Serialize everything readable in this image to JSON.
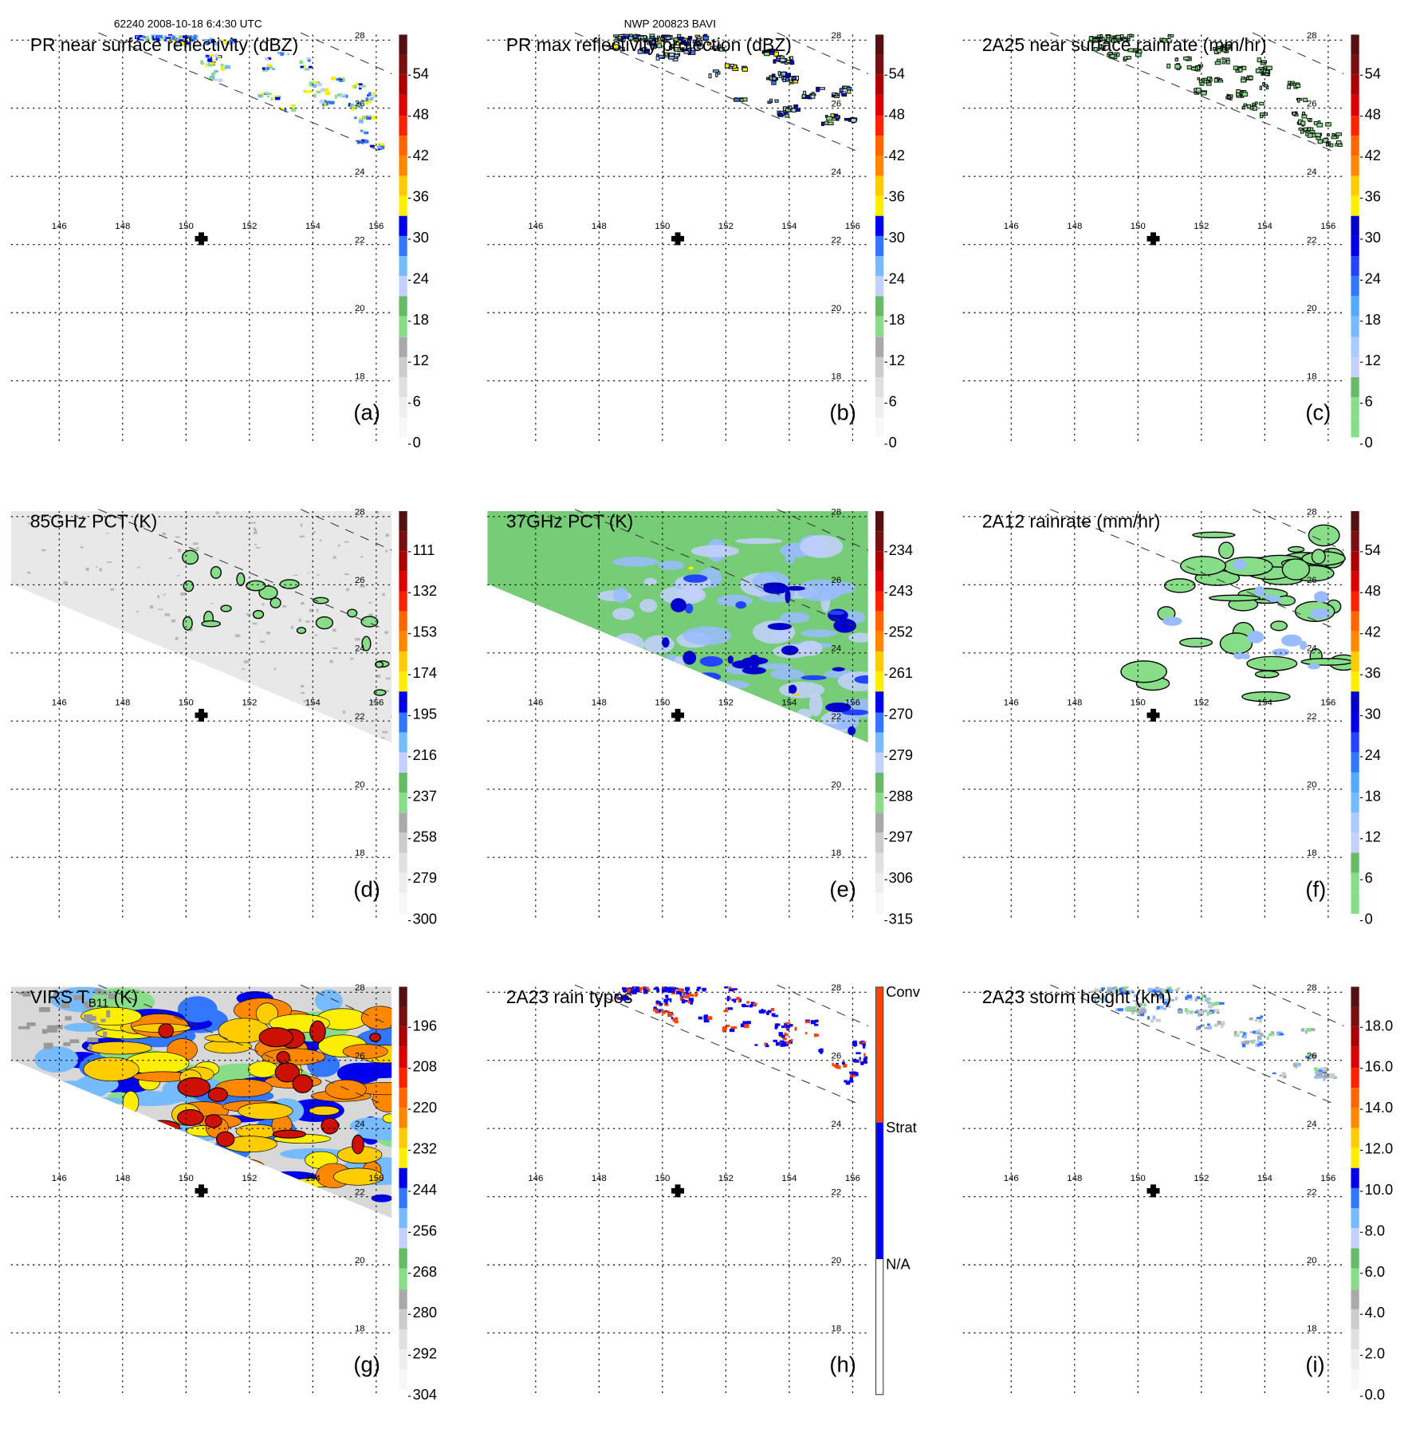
{
  "headers": [
    {
      "text": "62240 2008-10-18 6:4:30 UTC"
    },
    {
      "text": "NWP 200823 BAVI"
    }
  ],
  "map": {
    "lat_labels": [
      "28",
      "26",
      "24",
      "22",
      "20",
      "18"
    ],
    "lon_labels": [
      "146",
      "148",
      "150",
      "152",
      "154",
      "156"
    ],
    "center_marker": "plus-icon"
  },
  "colors": {
    "standard": [
      "#f8f8f8",
      "#eeeeee",
      "#e0e0e0",
      "#cccccc",
      "#aaaaaa",
      "#88dd88",
      "#66bb66",
      "#c4d0ff",
      "#77bbff",
      "#3377ff",
      "#0000ee",
      "#ffee00",
      "#ffcc00",
      "#ff8800",
      "#ff6600",
      "#ff2200",
      "#dd0000",
      "#aa0000",
      "#771111",
      "#551111"
    ],
    "rain": [
      "#88dd88",
      "#88dd88",
      "#66bb66",
      "#c4d0ff",
      "#aaccff",
      "#77bbff",
      "#55aaff",
      "#3377ff",
      "#2244ff",
      "#0000ee",
      "#0000cc",
      "#ffee00",
      "#ffcc00",
      "#ff8800",
      "#ff6600",
      "#ff2200",
      "#dd0000",
      "#aa0000",
      "#771111",
      "#551111"
    ],
    "rain_type": {
      "conv": "#ff4400",
      "strat": "#0000ff",
      "na": "#ffffff"
    }
  },
  "panels": [
    {
      "letter": "(a)",
      "title": "PR near surface reflectivity (dBZ)",
      "scale": "standard",
      "render": "sparse-reflectivity",
      "colorbar_labels": [
        "0",
        "6",
        "12",
        "18",
        "24",
        "30",
        "36",
        "42",
        "48",
        "54"
      ]
    },
    {
      "letter": "(b)",
      "title": "PR max reflectivity projection (dBZ)",
      "scale": "standard",
      "render": "sparse-contoured",
      "colorbar_labels": [
        "0",
        "6",
        "12",
        "18",
        "24",
        "30",
        "36",
        "42",
        "48",
        "54"
      ]
    },
    {
      "letter": "(c)",
      "title": "2A25 near surface rainrate (mm/hr)",
      "scale": "rain",
      "render": "sparse-green",
      "colorbar_labels": [
        "0",
        "6",
        "12",
        "18",
        "24",
        "30",
        "36",
        "42",
        "48",
        "54"
      ]
    },
    {
      "letter": "(d)",
      "title": "85GHz PCT (K)",
      "scale": "standard",
      "render": "swath-gray",
      "colorbar_labels": [
        "300",
        "279",
        "258",
        "237",
        "216",
        "195",
        "174",
        "153",
        "132",
        "111"
      ]
    },
    {
      "letter": "(e)",
      "title": "37GHz PCT (K)",
      "scale": "standard",
      "render": "swath-green",
      "colorbar_labels": [
        "315",
        "306",
        "297",
        "288",
        "279",
        "270",
        "261",
        "252",
        "243",
        "234"
      ]
    },
    {
      "letter": "(f)",
      "title": "2A12 rainrate (mm/hr)",
      "scale": "rain",
      "render": "broad-green",
      "colorbar_labels": [
        "0",
        "6",
        "12",
        "18",
        "24",
        "30",
        "36",
        "42",
        "48",
        "54"
      ]
    },
    {
      "letter": "(g)",
      "title": "VIRS T",
      "title_sub": "B11",
      "title_suffix": " (K)",
      "scale": "standard",
      "render": "swath-ir",
      "colorbar_labels": [
        "304",
        "292",
        "280",
        "268",
        "256",
        "244",
        "232",
        "220",
        "208",
        "196"
      ]
    },
    {
      "letter": "(h)",
      "title": "2A23 rain types",
      "scale": "types",
      "render": "sparse-types",
      "colorbar_labels": [
        "N/A",
        "Strat",
        "Conv"
      ]
    },
    {
      "letter": "(i)",
      "title": "2A23 storm height (km)",
      "scale": "standard",
      "render": "sparse-height",
      "colorbar_labels": [
        "0.0",
        "2.0",
        "4.0",
        "6.0",
        "8.0",
        "10.0",
        "12.0",
        "14.0",
        "16.0",
        "18.0"
      ]
    }
  ]
}
